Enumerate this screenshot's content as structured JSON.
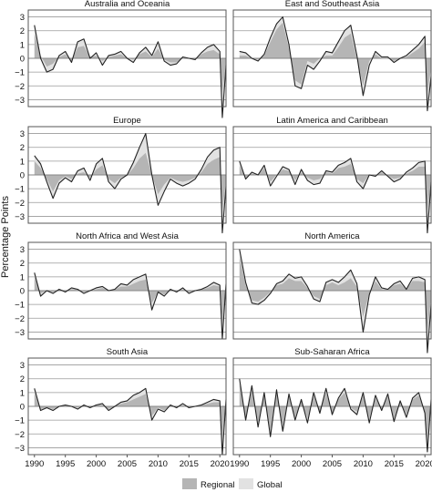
{
  "chart_data": {
    "type": "area",
    "ylabel": "Percentage Points",
    "ylim": [
      -3.5,
      3.5
    ],
    "yticks": [
      3,
      2,
      1,
      0,
      -1,
      -2,
      -3
    ],
    "xlim": [
      1989,
      2021
    ],
    "xticks": [
      1990,
      1995,
      2000,
      2005,
      2010,
      2015,
      2020
    ],
    "grid": "horizontal",
    "legend": {
      "position": "bottom-center",
      "items": [
        "Regional",
        "Global"
      ]
    },
    "colors": {
      "regional": "#b5b5b5",
      "global": "#e2e2e2",
      "line": "#222222",
      "frame": "#555555",
      "grid": "#9a9a9a"
    },
    "panels": [
      {
        "title": "Australia and Oceania",
        "x": [
          1990,
          1991,
          1992,
          1993,
          1994,
          1995,
          1996,
          1997,
          1998,
          1999,
          2000,
          2001,
          2002,
          2003,
          2004,
          2005,
          2006,
          2007,
          2008,
          2009,
          2010,
          2011,
          2012,
          2013,
          2014,
          2015,
          2016,
          2017,
          2018,
          2019,
          2020,
          2020.4,
          2021
        ],
        "total": [
          2.4,
          0.0,
          -1.0,
          -0.8,
          0.2,
          0.5,
          -0.3,
          1.2,
          1.4,
          0.0,
          0.4,
          -0.5,
          0.2,
          0.3,
          0.5,
          0.0,
          -0.3,
          0.4,
          0.8,
          0.2,
          1.2,
          -0.2,
          -0.5,
          -0.4,
          0.1,
          0.0,
          -0.1,
          0.4,
          0.8,
          1.0,
          0.5,
          -4.3,
          -0.5
        ],
        "regional": [
          1.8,
          0.2,
          -0.6,
          -0.4,
          0.1,
          0.3,
          -0.2,
          0.8,
          0.9,
          0.1,
          0.2,
          -0.2,
          0.1,
          0.2,
          0.3,
          0.0,
          -0.1,
          0.3,
          0.5,
          0.1,
          0.7,
          -0.1,
          -0.3,
          -0.3,
          0.0,
          0.0,
          -0.1,
          0.3,
          0.5,
          0.6,
          0.3,
          -2.5,
          -0.3
        ]
      },
      {
        "title": "East and Southeast Asia",
        "x": [
          1990,
          1991,
          1992,
          1993,
          1994,
          1995,
          1996,
          1997,
          1998,
          1999,
          2000,
          2001,
          2002,
          2003,
          2004,
          2005,
          2006,
          2007,
          2008,
          2009,
          2010,
          2011,
          2012,
          2013,
          2014,
          2015,
          2016,
          2017,
          2018,
          2019,
          2020,
          2020.4,
          2021
        ],
        "total": [
          0.5,
          0.4,
          0.0,
          -0.2,
          0.3,
          1.5,
          2.5,
          3.0,
          1.0,
          -2.0,
          -2.2,
          -0.5,
          -0.8,
          -0.2,
          0.5,
          0.4,
          1.2,
          2.0,
          2.4,
          0.2,
          -2.7,
          -0.5,
          0.5,
          0.1,
          0.1,
          -0.3,
          0.0,
          0.2,
          0.6,
          1.0,
          1.6,
          -3.8,
          -1.3
        ],
        "regional": [
          0.2,
          0.2,
          0.0,
          -0.1,
          0.2,
          1.2,
          2.1,
          2.6,
          0.7,
          -1.6,
          -1.9,
          -0.2,
          -0.4,
          0.0,
          0.2,
          0.2,
          0.8,
          1.5,
          1.8,
          0.0,
          -2.0,
          -0.2,
          0.3,
          0.0,
          0.0,
          -0.2,
          0.0,
          0.1,
          0.4,
          0.7,
          1.2,
          -2.5,
          -0.8
        ]
      },
      {
        "title": "Europe",
        "x": [
          1990,
          1991,
          1992,
          1993,
          1994,
          1995,
          1996,
          1997,
          1998,
          1999,
          2000,
          2001,
          2002,
          2003,
          2004,
          2005,
          2006,
          2007,
          2008,
          2009,
          2010,
          2011,
          2012,
          2013,
          2014,
          2015,
          2016,
          2017,
          2018,
          2019,
          2020,
          2020.4,
          2021
        ],
        "total": [
          1.4,
          0.8,
          -0.5,
          -1.7,
          -0.6,
          -0.2,
          -0.5,
          0.3,
          0.5,
          -0.4,
          0.8,
          1.2,
          -0.5,
          -1.0,
          -0.3,
          0.0,
          0.9,
          2.0,
          3.0,
          0.0,
          -2.2,
          -1.2,
          -0.3,
          -0.6,
          -0.8,
          -0.6,
          -0.3,
          0.4,
          1.3,
          1.8,
          2.0,
          -4.2,
          -0.8
        ],
        "regional": [
          1.0,
          0.5,
          -0.3,
          -1.2,
          -0.4,
          -0.1,
          -0.3,
          0.1,
          0.2,
          -0.2,
          0.4,
          0.7,
          -0.3,
          -0.6,
          -0.2,
          0.0,
          0.5,
          1.2,
          1.6,
          0.0,
          -1.4,
          -0.7,
          -0.2,
          -0.4,
          -0.5,
          -0.4,
          -0.2,
          0.2,
          0.8,
          1.1,
          1.3,
          -2.6,
          -0.5
        ]
      },
      {
        "title": "Latin America and Caribbean",
        "x": [
          1990,
          1991,
          1992,
          1993,
          1994,
          1995,
          1996,
          1997,
          1998,
          1999,
          2000,
          2001,
          2002,
          2003,
          2004,
          2005,
          2006,
          2007,
          2008,
          2009,
          2010,
          2011,
          2012,
          2013,
          2014,
          2015,
          2016,
          2017,
          2018,
          2019,
          2020,
          2020.4,
          2021
        ],
        "total": [
          1.0,
          -0.3,
          0.2,
          0.0,
          0.7,
          -0.8,
          -0.1,
          0.6,
          0.4,
          -0.7,
          0.4,
          -0.4,
          -0.7,
          -0.6,
          0.3,
          0.2,
          0.7,
          0.9,
          1.2,
          -0.5,
          -1.0,
          0.0,
          -0.1,
          0.3,
          -0.1,
          -0.5,
          -0.3,
          0.2,
          0.5,
          0.9,
          1.0,
          -4.2,
          -0.5
        ],
        "regional": [
          0.7,
          -0.2,
          0.1,
          0.0,
          0.5,
          -0.5,
          0.0,
          0.4,
          0.3,
          -0.4,
          0.2,
          -0.2,
          -0.4,
          -0.3,
          0.2,
          0.1,
          0.5,
          0.6,
          0.8,
          -0.3,
          -0.6,
          0.0,
          -0.1,
          0.2,
          -0.1,
          -0.3,
          -0.2,
          0.1,
          0.3,
          0.6,
          0.6,
          -2.6,
          -0.3
        ]
      },
      {
        "title": "North Africa and West Asia",
        "x": [
          1990,
          1991,
          1992,
          1993,
          1994,
          1995,
          1996,
          1997,
          1998,
          1999,
          2000,
          2001,
          2002,
          2003,
          2004,
          2005,
          2006,
          2007,
          2008,
          2009,
          2010,
          2011,
          2012,
          2013,
          2014,
          2015,
          2016,
          2017,
          2018,
          2019,
          2020,
          2020.4,
          2021
        ],
        "total": [
          1.3,
          -0.4,
          0.0,
          -0.2,
          0.1,
          -0.1,
          0.2,
          0.1,
          -0.2,
          0.0,
          0.2,
          0.3,
          0.0,
          0.1,
          0.5,
          0.4,
          0.8,
          1.0,
          1.2,
          -1.4,
          -0.1,
          -0.4,
          0.1,
          -0.1,
          0.2,
          -0.2,
          0.0,
          0.1,
          0.3,
          0.6,
          0.4,
          -3.5,
          0.5
        ],
        "regional": [
          1.0,
          -0.2,
          0.0,
          -0.1,
          0.1,
          0.0,
          0.1,
          0.1,
          -0.1,
          0.0,
          0.1,
          0.2,
          0.0,
          0.1,
          0.3,
          0.3,
          0.5,
          0.7,
          0.8,
          -0.9,
          -0.1,
          -0.3,
          0.1,
          0.0,
          0.1,
          -0.1,
          0.0,
          0.1,
          0.2,
          0.4,
          0.3,
          -2.4,
          0.3
        ]
      },
      {
        "title": "North America",
        "x": [
          1990,
          1991,
          1992,
          1993,
          1994,
          1995,
          1996,
          1997,
          1998,
          1999,
          2000,
          2001,
          2002,
          2003,
          2004,
          2005,
          2006,
          2007,
          2008,
          2009,
          2010,
          2011,
          2012,
          2013,
          2014,
          2015,
          2016,
          2017,
          2018,
          2019,
          2020,
          2020.4,
          2021
        ],
        "total": [
          3.0,
          0.6,
          -0.9,
          -1.0,
          -0.7,
          -0.2,
          0.5,
          0.7,
          1.2,
          0.9,
          1.0,
          0.3,
          -0.6,
          -0.8,
          0.6,
          0.8,
          0.6,
          1.0,
          1.5,
          0.5,
          -3.0,
          -0.3,
          1.0,
          0.2,
          0.1,
          0.5,
          0.7,
          0.1,
          0.9,
          1.0,
          0.8,
          -4.5,
          -1.0
        ],
        "regional": [
          2.5,
          0.4,
          -0.7,
          -0.8,
          -0.5,
          -0.1,
          0.4,
          0.5,
          0.9,
          0.7,
          0.7,
          0.2,
          -0.4,
          -0.6,
          0.4,
          0.6,
          0.4,
          0.6,
          0.9,
          0.3,
          -1.9,
          -0.2,
          0.7,
          0.1,
          0.1,
          0.4,
          0.5,
          0.1,
          0.7,
          0.7,
          0.6,
          -2.9,
          -0.6
        ]
      },
      {
        "title": "South Asia",
        "x": [
          1990,
          1991,
          1992,
          1993,
          1994,
          1995,
          1996,
          1997,
          1998,
          1999,
          2000,
          2001,
          2002,
          2003,
          2004,
          2005,
          2006,
          2007,
          2008,
          2009,
          2010,
          2011,
          2012,
          2013,
          2014,
          2015,
          2016,
          2017,
          2018,
          2019,
          2020,
          2020.4,
          2021
        ],
        "total": [
          1.3,
          -0.3,
          -0.1,
          -0.3,
          0.0,
          0.1,
          0.0,
          -0.2,
          0.1,
          -0.1,
          0.1,
          0.2,
          -0.3,
          0.0,
          0.3,
          0.4,
          0.8,
          1.0,
          1.3,
          -1.0,
          -0.2,
          -0.4,
          0.1,
          -0.1,
          0.2,
          -0.1,
          0.0,
          0.1,
          0.3,
          0.5,
          0.4,
          -3.5,
          0.5
        ],
        "regional": [
          1.0,
          -0.2,
          -0.1,
          -0.2,
          0.0,
          0.1,
          0.0,
          -0.1,
          0.1,
          -0.1,
          0.1,
          0.1,
          -0.2,
          0.0,
          0.2,
          0.3,
          0.5,
          0.7,
          0.9,
          -0.7,
          -0.1,
          -0.3,
          0.1,
          -0.1,
          0.1,
          -0.1,
          0.0,
          0.1,
          0.2,
          0.3,
          0.3,
          -2.4,
          0.3
        ]
      },
      {
        "title": "Sub-Saharan Africa",
        "x": [
          1990,
          1991,
          1992,
          1993,
          1994,
          1995,
          1996,
          1997,
          1998,
          1999,
          2000,
          2001,
          2002,
          2003,
          2004,
          2005,
          2006,
          2007,
          2008,
          2009,
          2010,
          2011,
          2012,
          2013,
          2014,
          2015,
          2016,
          2017,
          2018,
          2019,
          2020,
          2020.4,
          2021
        ],
        "total": [
          2.0,
          -1.0,
          1.5,
          -1.5,
          1.0,
          -2.2,
          1.2,
          -1.8,
          0.9,
          -1.0,
          0.5,
          -1.2,
          1.0,
          -0.5,
          1.3,
          -0.6,
          0.6,
          1.3,
          -0.2,
          -0.6,
          1.0,
          -1.2,
          0.8,
          -0.3,
          0.9,
          -1.1,
          0.4,
          -0.8,
          0.6,
          1.0,
          -0.5,
          -3.3,
          0.5
        ],
        "regional": [
          1.7,
          -0.8,
          1.2,
          -1.2,
          0.8,
          -1.8,
          1.0,
          -1.4,
          0.7,
          -0.8,
          0.4,
          -0.9,
          0.8,
          -0.4,
          1.0,
          -0.5,
          0.5,
          1.0,
          -0.1,
          -0.4,
          0.8,
          -0.9,
          0.6,
          -0.2,
          0.7,
          -0.9,
          0.3,
          -0.6,
          0.5,
          0.8,
          -0.4,
          -2.4,
          0.4
        ]
      }
    ]
  }
}
